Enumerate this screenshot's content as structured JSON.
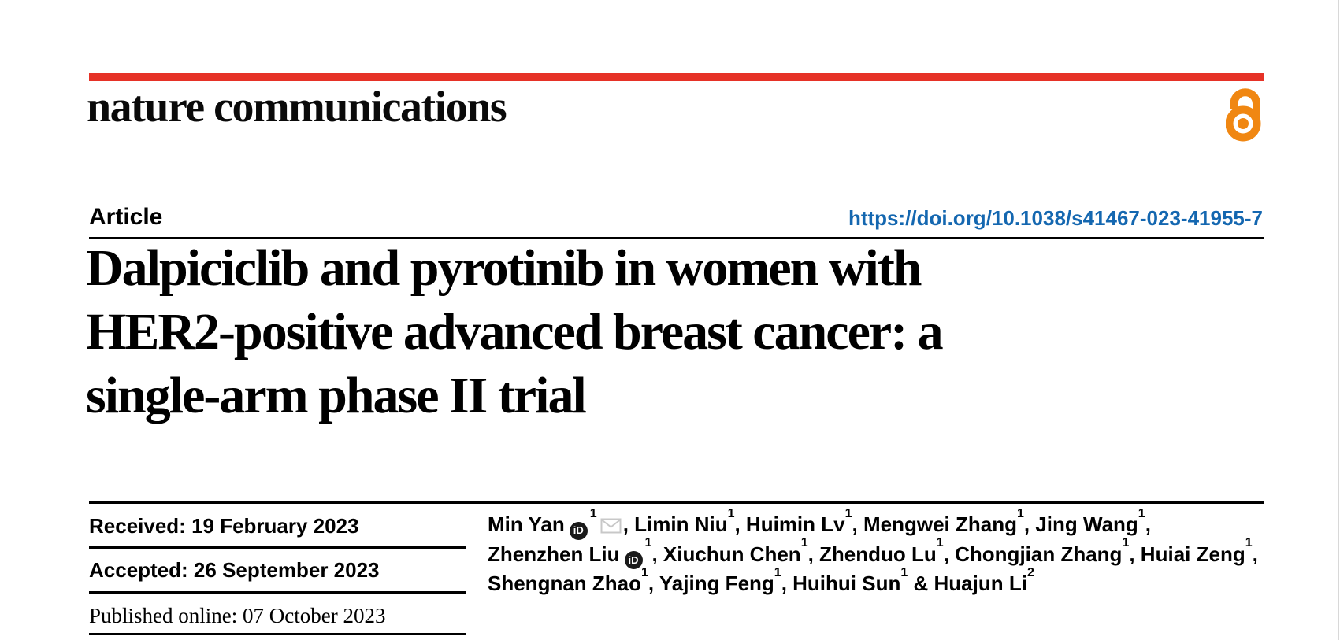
{
  "brand": {
    "journal": "nature communications",
    "topbar_color": "#e63227",
    "open_access_color": "#f08712"
  },
  "article": {
    "kicker": "Article",
    "doi": "https://doi.org/10.1038/s41467-023-41955-7",
    "doi_color": "#1467b0",
    "title_lines": [
      "Dalpiciclib and pyrotinib in women with",
      "HER2-positive advanced breast cancer: a",
      "single-arm phase II trial"
    ]
  },
  "dates": {
    "received": "Received: 19 February 2023",
    "accepted": "Accepted: 26 September 2023",
    "published": "Published online: 07 October 2023"
  },
  "icons": {
    "orcid_label": "iD",
    "open_access": "open-access-padlock",
    "email": "envelope"
  },
  "authors": {
    "lines": [
      [
        {
          "t": "Min Yan"
        },
        {
          "i": "orcid"
        },
        {
          "s": "1"
        },
        {
          "i": "email"
        },
        {
          "t": ", Limin Niu"
        },
        {
          "s": "1"
        },
        {
          "t": ", Huimin Lv"
        },
        {
          "s": "1"
        },
        {
          "t": ", Mengwei Zhang"
        },
        {
          "s": "1"
        },
        {
          "t": ", Jing Wang"
        },
        {
          "s": "1"
        },
        {
          "t": ","
        }
      ],
      [
        {
          "t": "Zhenzhen Liu"
        },
        {
          "i": "orcid"
        },
        {
          "s": "1"
        },
        {
          "t": ", Xiuchun Chen"
        },
        {
          "s": "1"
        },
        {
          "t": ", Zhenduo Lu"
        },
        {
          "s": "1"
        },
        {
          "t": ", Chongjian Zhang"
        },
        {
          "s": "1"
        },
        {
          "t": ", Huiai Zeng"
        },
        {
          "s": "1"
        },
        {
          "t": ","
        }
      ],
      [
        {
          "t": "Shengnan Zhao"
        },
        {
          "s": "1"
        },
        {
          "t": ", Yajing Feng"
        },
        {
          "s": "1"
        },
        {
          "t": ", Huihui Sun"
        },
        {
          "s": "1"
        },
        {
          "t": " & Huajun Li"
        },
        {
          "s": "2"
        }
      ]
    ]
  }
}
